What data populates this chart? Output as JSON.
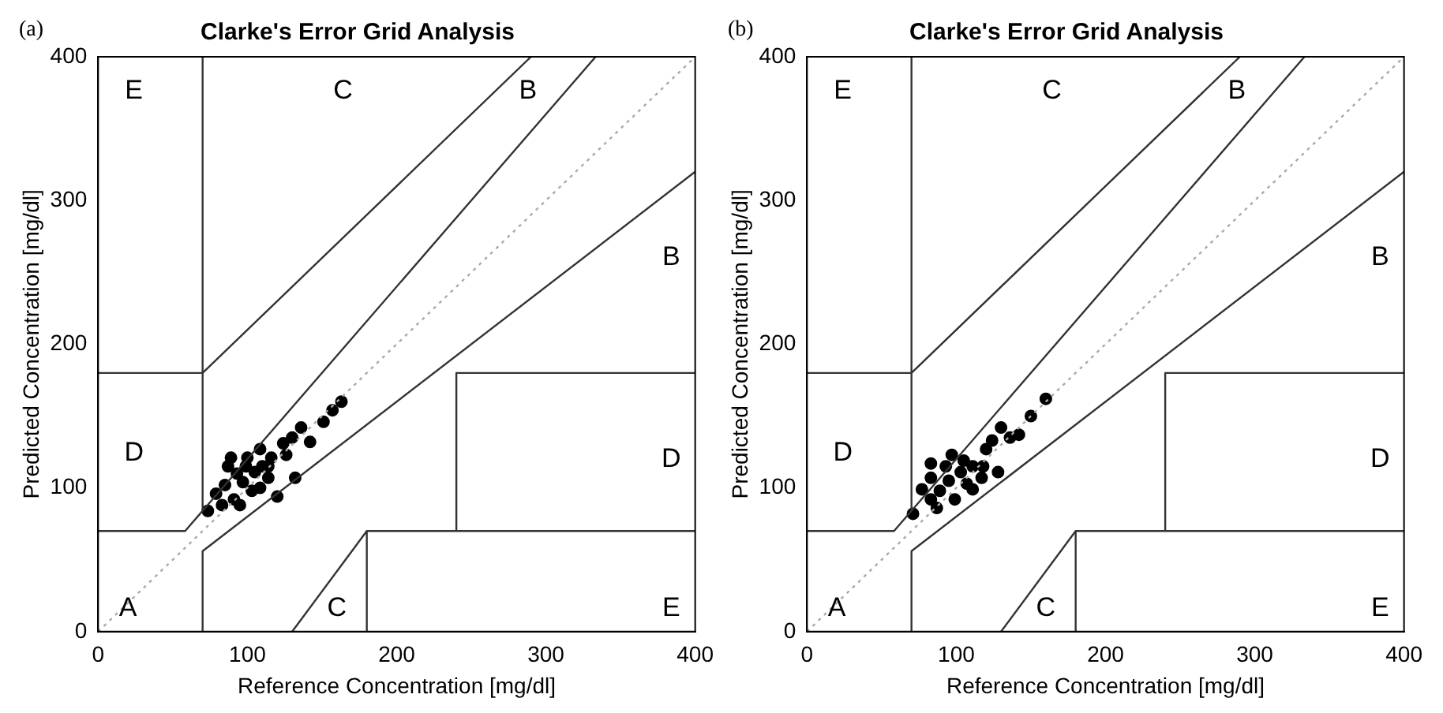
{
  "chart_data": [
    {
      "type": "scatter",
      "title": "Clarke's Error Grid Analysis",
      "xlabel": "Reference Concentration [mg/dl]",
      "ylabel": "Predicted Concentration [mg/dl]",
      "xlim": [
        0,
        400
      ],
      "ylim": [
        0,
        400
      ],
      "xticks": [
        0,
        100,
        200,
        300,
        400
      ],
      "yticks": [
        0,
        100,
        200,
        300,
        400
      ],
      "grid": false,
      "legend": false,
      "annotations": [
        "(a)",
        "A",
        "B",
        "B",
        "C",
        "C",
        "D",
        "D",
        "E",
        "E"
      ],
      "series": [
        {
          "type": "line",
          "marker": "none",
          "line_style": "dotted",
          "color": "#aaaaaa",
          "x": [
            0,
            400
          ],
          "values": [
            0,
            400
          ]
        },
        {
          "type": "line",
          "marker": "none",
          "line_style": "solid",
          "color": "#333333",
          "x": [
            0,
            58.3,
            333.3
          ],
          "values": [
            70,
            70,
            400
          ]
        },
        {
          "type": "line",
          "marker": "none",
          "line_style": "solid",
          "color": "#333333",
          "x": [
            70,
            70
          ],
          "values": [
            84,
            400
          ]
        },
        {
          "type": "line",
          "marker": "none",
          "line_style": "solid",
          "color": "#333333",
          "x": [
            0,
            70,
            290
          ],
          "values": [
            180,
            180,
            400
          ]
        },
        {
          "type": "line",
          "marker": "none",
          "line_style": "solid",
          "color": "#333333",
          "x": [
            70,
            70,
            400
          ],
          "values": [
            0,
            56,
            320
          ]
        },
        {
          "type": "line",
          "marker": "none",
          "line_style": "solid",
          "color": "#333333",
          "x": [
            130,
            180,
            400
          ],
          "values": [
            0,
            70,
            70
          ]
        },
        {
          "type": "line",
          "marker": "none",
          "line_style": "solid",
          "color": "#333333",
          "x": [
            180,
            180
          ],
          "values": [
            0,
            70
          ]
        },
        {
          "type": "line",
          "marker": "none",
          "line_style": "solid",
          "color": "#333333",
          "x": [
            240,
            240,
            400
          ],
          "values": [
            70,
            180,
            180
          ]
        },
        {
          "marker": "circle",
          "color": "#000000",
          "x": [
            73.5,
            87,
            79,
            85,
            91,
            97,
            100,
            105,
            108.5,
            110,
            114,
            120,
            116,
            108.5,
            124,
            130,
            136,
            142,
            132,
            151,
            157,
            163,
            95,
            83,
            103,
            93,
            99,
            114,
            126,
            89
          ],
          "values": [
            84,
            115,
            96,
            102,
            92,
            104,
            121,
            111,
            100,
            115,
            107,
            94,
            121,
            127,
            131,
            135,
            142,
            132,
            107,
            146,
            154,
            160,
            88,
            88,
            98,
            110,
            115,
            115,
            123,
            121
          ]
        }
      ]
    },
    {
      "type": "scatter",
      "title": "Clarke's Error Grid Analysis",
      "xlabel": "Reference Concentration [mg/dl]",
      "ylabel": "Predicted Concentration [mg/dl]",
      "xlim": [
        0,
        400
      ],
      "ylim": [
        0,
        400
      ],
      "xticks": [
        0,
        100,
        200,
        300,
        400
      ],
      "yticks": [
        0,
        100,
        200,
        300,
        400
      ],
      "grid": false,
      "legend": false,
      "annotations": [
        "(b)",
        "A",
        "B",
        "B",
        "C",
        "C",
        "D",
        "D",
        "E",
        "E"
      ],
      "series": [
        {
          "type": "line",
          "marker": "none",
          "line_style": "dotted",
          "color": "#aaaaaa",
          "x": [
            0,
            400
          ],
          "values": [
            0,
            400
          ]
        },
        {
          "type": "line",
          "marker": "none",
          "line_style": "solid",
          "color": "#333333",
          "x": [
            0,
            58.3,
            333.3
          ],
          "values": [
            70,
            70,
            400
          ]
        },
        {
          "type": "line",
          "marker": "none",
          "line_style": "solid",
          "color": "#333333",
          "x": [
            70,
            70
          ],
          "values": [
            84,
            400
          ]
        },
        {
          "type": "line",
          "marker": "none",
          "line_style": "solid",
          "color": "#333333",
          "x": [
            0,
            70,
            290
          ],
          "values": [
            180,
            180,
            400
          ]
        },
        {
          "type": "line",
          "marker": "none",
          "line_style": "solid",
          "color": "#333333",
          "x": [
            70,
            70,
            400
          ],
          "values": [
            0,
            56,
            320
          ]
        },
        {
          "type": "line",
          "marker": "none",
          "line_style": "solid",
          "color": "#333333",
          "x": [
            130,
            180,
            400
          ],
          "values": [
            0,
            70,
            70
          ]
        },
        {
          "type": "line",
          "marker": "none",
          "line_style": "solid",
          "color": "#333333",
          "x": [
            180,
            180
          ],
          "values": [
            0,
            70
          ]
        },
        {
          "type": "line",
          "marker": "none",
          "line_style": "solid",
          "color": "#333333",
          "x": [
            240,
            240,
            400
          ],
          "values": [
            70,
            180,
            180
          ]
        },
        {
          "marker": "circle",
          "color": "#000000",
          "x": [
            71,
            77,
            83,
            83,
            89,
            95,
            97,
            103,
            107,
            111,
            117,
            120,
            124,
            128,
            130,
            136,
            142,
            150,
            160,
            87,
            93,
            99,
            111,
            105,
            118,
            83
          ],
          "values": [
            82,
            99,
            117,
            92,
            98,
            105,
            123,
            111,
            103,
            115,
            107,
            127,
            133,
            111,
            142,
            135,
            137,
            150,
            162,
            86,
            115,
            92,
            99,
            119,
            115,
            107
          ]
        }
      ]
    }
  ]
}
